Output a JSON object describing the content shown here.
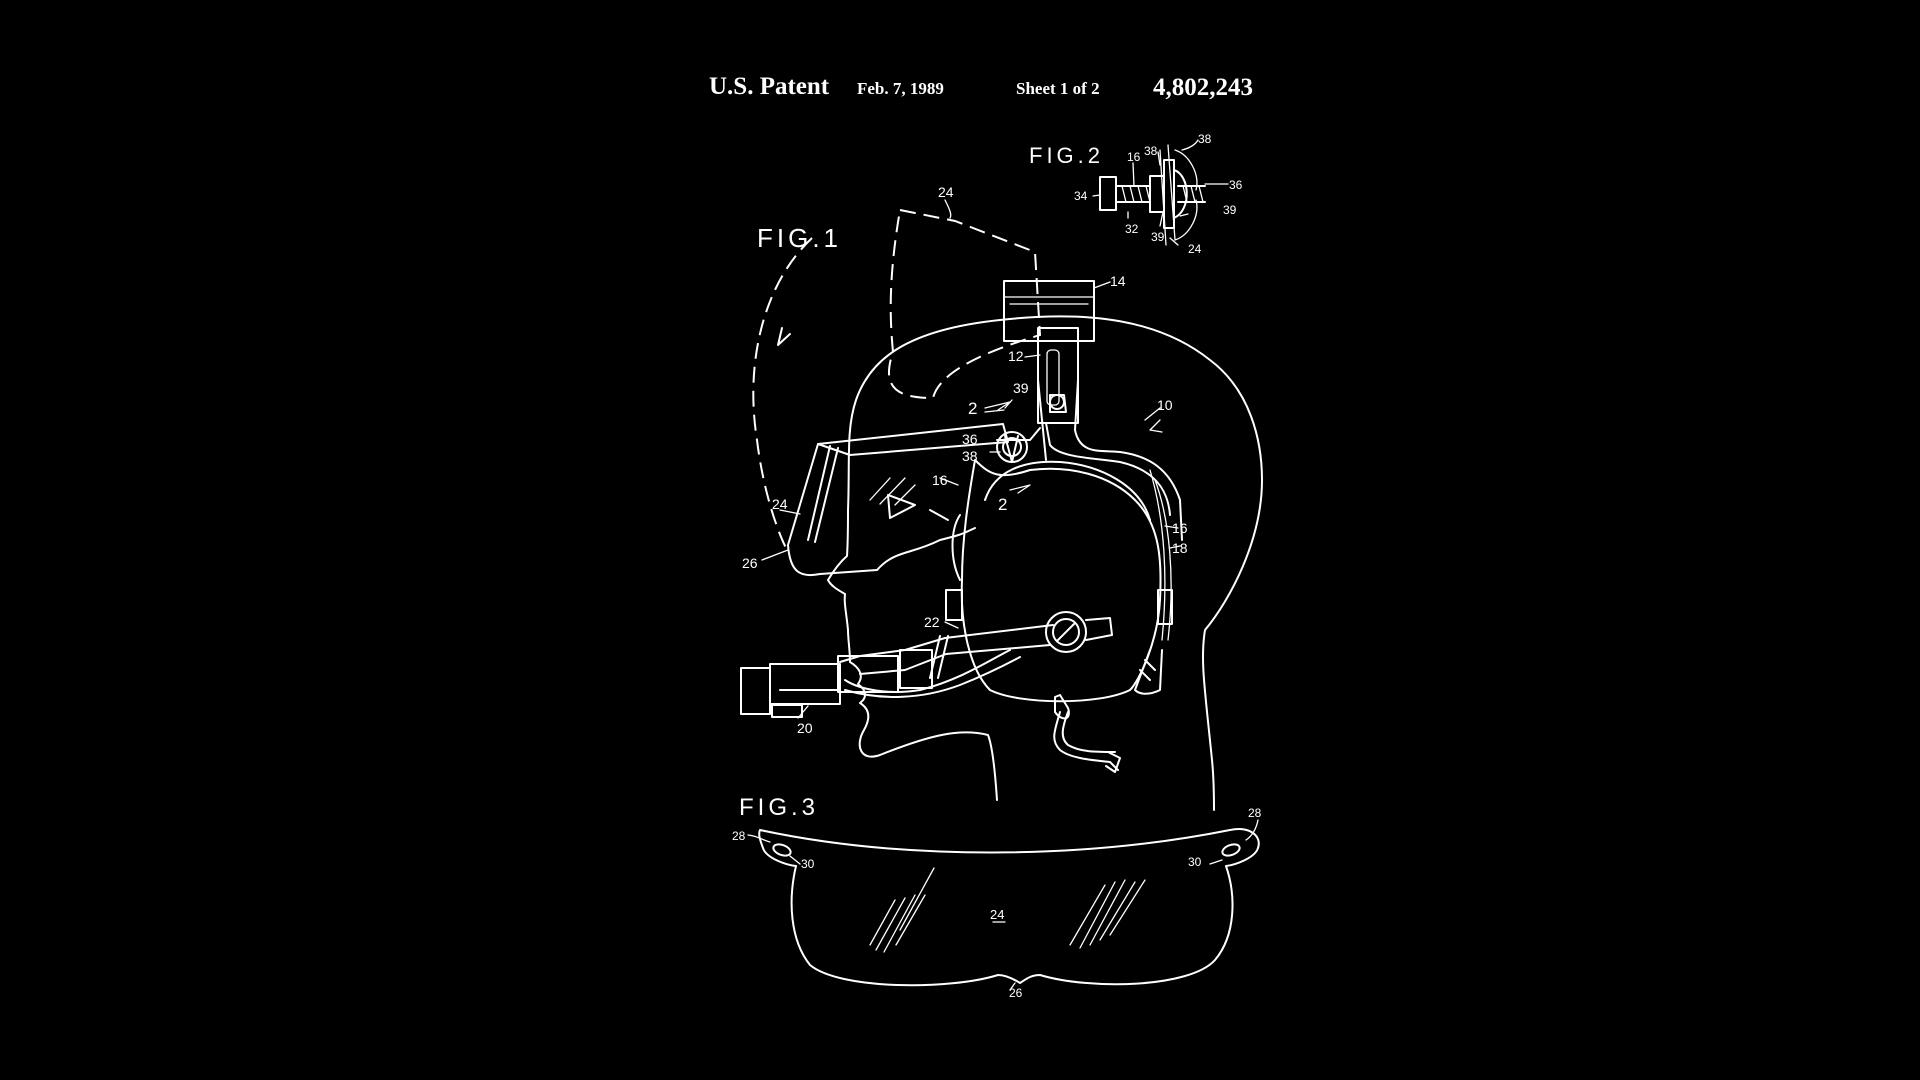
{
  "header": {
    "patent_label": "U.S. Patent",
    "date": "Feb. 7, 1989",
    "sheet": "Sheet 1 of 2",
    "patent_number": "4,802,243"
  },
  "figures": {
    "fig1": {
      "title": "FIG.1",
      "refs": {
        "r24_top": "24",
        "r14": "14",
        "r12": "12",
        "r10": "10",
        "r2_upper": "2",
        "r39": "39",
        "r36": "36",
        "r38": "38",
        "r16_left": "16",
        "r2_lower": "2",
        "r24_left": "24",
        "r26": "26",
        "r16_right": "16",
        "r18": "18",
        "r22": "22",
        "r20": "20"
      }
    },
    "fig2": {
      "title": "FIG.2",
      "refs": {
        "r16": "16",
        "r38_a": "38",
        "r38_b": "38",
        "r34": "34",
        "r36": "36",
        "r32": "32",
        "r39_a": "39",
        "r39_b": "39",
        "r24": "24"
      }
    },
    "fig3": {
      "title": "FIG.3",
      "refs": {
        "r28_left": "28",
        "r28_right": "28",
        "r30_left": "30",
        "r30_right": "30",
        "r24": "24",
        "r26": "26"
      }
    }
  },
  "colors": {
    "background": "#000000",
    "line": "#ffffff"
  }
}
